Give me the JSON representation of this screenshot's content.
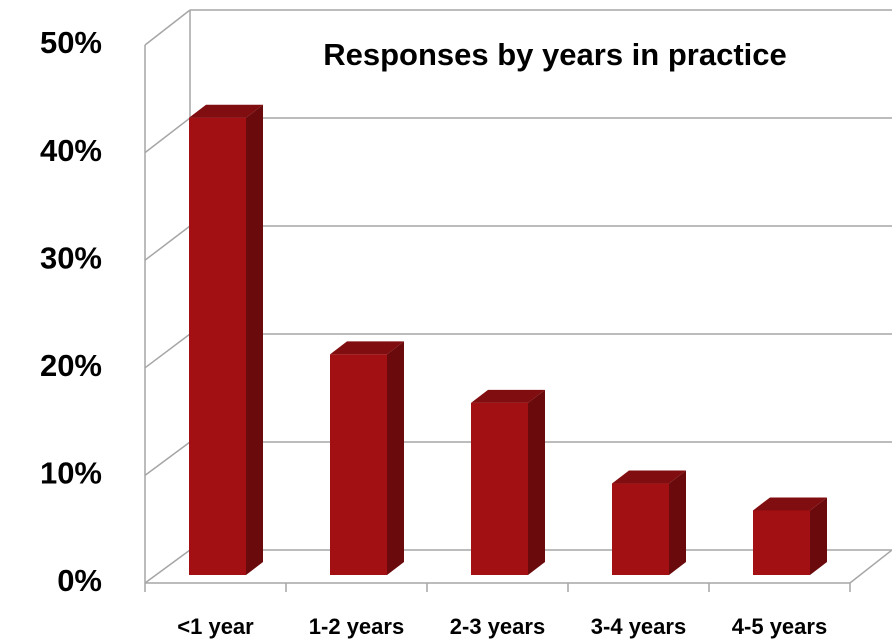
{
  "chart_data": {
    "type": "bar3d",
    "title": "Responses by years in practice",
    "categories": [
      "<1 year",
      "1-2 years",
      "2-3 years",
      "3-4 years",
      "4-5 years"
    ],
    "values": [
      42.5,
      20.5,
      16,
      8.5,
      6
    ],
    "color": "#a31014",
    "ylim": [
      0,
      50
    ],
    "yticks": [
      {
        "value": 0,
        "label": "0%"
      },
      {
        "value": 10,
        "label": "10%"
      },
      {
        "value": 20,
        "label": "20%"
      },
      {
        "value": 30,
        "label": "30%"
      },
      {
        "value": 40,
        "label": "40%"
      },
      {
        "value": 50,
        "label": "50%"
      }
    ],
    "grid": true
  }
}
